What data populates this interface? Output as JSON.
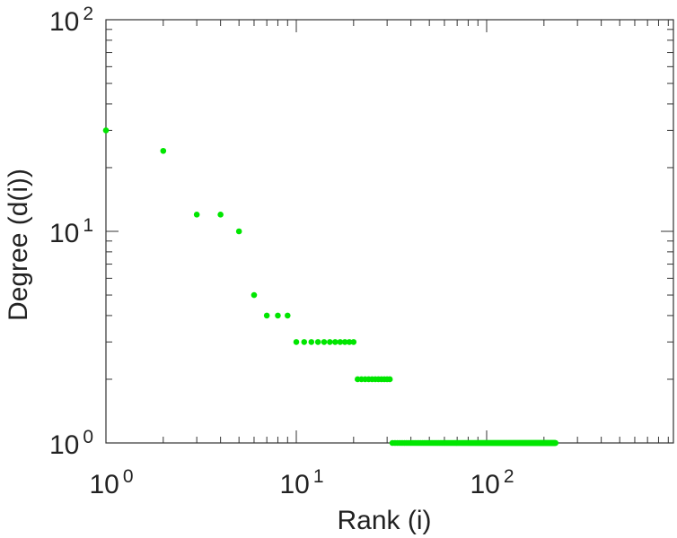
{
  "chart_data": {
    "type": "scatter",
    "title": "",
    "xlabel": "Rank (i)",
    "ylabel": "Degree (d(i))",
    "xscale": "log",
    "yscale": "log",
    "xlim": [
      1,
      1000
    ],
    "ylim": [
      1,
      100
    ],
    "grid": false,
    "marker_color": "#00e600",
    "x_ticks": [
      {
        "base": "10",
        "exp": "0"
      },
      {
        "base": "10",
        "exp": "1"
      },
      {
        "base": "10",
        "exp": "2"
      }
    ],
    "y_ticks": [
      {
        "base": "10",
        "exp": "0"
      },
      {
        "base": "10",
        "exp": "1"
      },
      {
        "base": "10",
        "exp": "2"
      }
    ],
    "series": [
      {
        "points": [
          [
            1,
            30
          ],
          [
            2,
            24
          ],
          [
            3,
            12
          ],
          [
            4,
            12
          ],
          [
            5,
            10
          ],
          [
            6,
            5
          ],
          [
            7,
            4
          ],
          [
            8,
            4
          ],
          [
            9,
            4
          ],
          [
            10,
            3
          ],
          [
            11,
            3
          ],
          [
            12,
            3
          ],
          [
            13,
            3
          ],
          [
            14,
            3
          ],
          [
            15,
            3
          ],
          [
            16,
            3
          ],
          [
            17,
            3
          ],
          [
            18,
            3
          ],
          [
            19,
            3
          ],
          [
            20,
            3
          ]
        ],
        "runs": [
          {
            "x_start": 21,
            "x_end": 31,
            "y": 2
          },
          {
            "x_start": 32,
            "x_end": 230,
            "y": 1
          }
        ]
      }
    ]
  }
}
